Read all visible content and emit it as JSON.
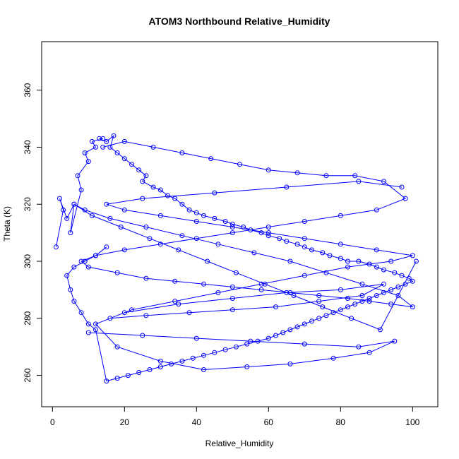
{
  "chart_data": {
    "type": "scatter",
    "title": "ATOM3 Northbound Relative_Humidity",
    "xlabel": "Relative_Humidity",
    "ylabel": "Theta (K)",
    "xlim": [
      -3,
      107
    ],
    "ylim": [
      249,
      377
    ],
    "xticks": [
      0,
      20,
      40,
      60,
      80,
      100
    ],
    "yticks": [
      260,
      280,
      300,
      320,
      340,
      360
    ],
    "grid": false,
    "legend": "none",
    "series_style": "points connected by lines (type='o')",
    "color": "#0000ff",
    "series": [
      {
        "x": [
          1,
          3,
          2,
          4,
          6,
          5,
          8,
          7,
          10,
          9,
          12,
          11,
          14,
          13,
          15,
          17,
          16,
          18,
          20,
          22,
          24,
          26,
          25,
          28,
          30,
          32,
          34,
          36,
          38,
          40,
          42,
          45,
          48,
          50,
          53,
          55,
          58,
          60,
          63,
          65,
          68,
          70,
          72,
          75,
          77,
          80,
          82,
          85,
          88,
          90,
          92,
          95,
          97,
          99,
          100,
          98,
          96,
          94,
          92,
          90,
          88,
          86,
          84,
          82,
          80,
          78,
          76,
          74,
          72,
          70,
          68,
          66,
          64,
          62,
          60,
          57,
          54,
          51,
          48,
          45,
          42,
          39,
          36,
          33,
          30,
          27,
          24,
          21,
          18,
          15,
          12,
          10,
          8,
          6,
          5,
          4,
          6,
          9,
          12,
          15
        ],
        "y": [
          305,
          318,
          322,
          315,
          320,
          310,
          325,
          330,
          335,
          338,
          340,
          342,
          343,
          343,
          342,
          344,
          340,
          338,
          336,
          334,
          332,
          330,
          328,
          326,
          325,
          323,
          322,
          320,
          318,
          317,
          316,
          315,
          314,
          313,
          312,
          311,
          310,
          309,
          308,
          307,
          306,
          305,
          304,
          303,
          302,
          301,
          300,
          300,
          299,
          298,
          297,
          296,
          295,
          294,
          293,
          292,
          291,
          290,
          289,
          288,
          287,
          286,
          285,
          284,
          283,
          282,
          281,
          280,
          279,
          278,
          277,
          276,
          275,
          274,
          273,
          272,
          271,
          270,
          269,
          268,
          267,
          266,
          265,
          264,
          263,
          262,
          261,
          260,
          259,
          258,
          276,
          278,
          282,
          286,
          290,
          295,
          298,
          300,
          302,
          305
        ]
      },
      {
        "x": [
          14,
          20,
          28,
          36,
          44,
          52,
          60,
          68,
          76,
          84,
          92,
          98,
          90,
          80,
          70,
          60,
          50,
          40,
          30,
          20,
          12,
          8,
          10,
          18,
          26,
          34,
          42,
          50,
          58,
          66,
          74,
          82,
          88,
          94,
          100,
          96,
          86,
          76,
          66,
          56,
          46,
          36,
          26,
          16,
          9,
          6,
          11,
          19,
          27,
          35,
          43,
          51,
          59,
          67,
          75,
          83,
          91,
          101
        ],
        "y": [
          340,
          342,
          340,
          338,
          336,
          334,
          332,
          331,
          330,
          330,
          328,
          322,
          318,
          316,
          314,
          312,
          310,
          308,
          306,
          304,
          302,
          300,
          298,
          296,
          294,
          293,
          292,
          291,
          290,
          289,
          288,
          287,
          286,
          285,
          284,
          288,
          292,
          296,
          300,
          303,
          306,
          309,
          312,
          315,
          318,
          320,
          316,
          312,
          308,
          304,
          300,
          296,
          292,
          288,
          284,
          280,
          276,
          300
        ]
      },
      {
        "x": [
          10,
          25,
          40,
          55,
          70,
          85,
          95,
          88,
          78,
          66,
          54,
          42,
          30,
          18,
          12,
          20,
          35,
          50,
          65,
          80,
          92,
          86,
          74,
          62,
          50,
          38,
          26,
          16,
          22,
          34,
          46,
          58,
          70,
          82,
          94,
          100,
          90,
          80,
          70,
          60,
          50,
          40,
          30,
          20,
          15,
          25,
          45,
          65,
          85,
          97
        ],
        "y": [
          275,
          274,
          273,
          272,
          271,
          270,
          272,
          268,
          266,
          264,
          263,
          262,
          265,
          270,
          278,
          282,
          285,
          287,
          289,
          290,
          292,
          288,
          286,
          284,
          283,
          282,
          281,
          280,
          283,
          286,
          289,
          292,
          295,
          298,
          300,
          302,
          304,
          306,
          308,
          310,
          312,
          314,
          316,
          318,
          320,
          322,
          324,
          326,
          328,
          326
        ]
      }
    ]
  }
}
